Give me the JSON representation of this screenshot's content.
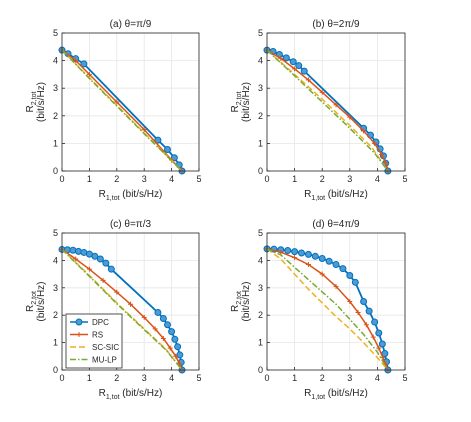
{
  "chart_data": {
    "type": "line",
    "shared": {
      "xlabel": "R",
      "xlabel_sub": "1,tot",
      "xlabel_unit": " (bit/s/Hz)",
      "ylabel": "R",
      "ylabel_sub": "2,tot",
      "ylabel_unit": "(bit/s/Hz)",
      "xlim": [
        0,
        5
      ],
      "ylim": [
        0,
        5
      ],
      "xticks": [
        "0",
        "1",
        "2",
        "3",
        "4",
        "5"
      ],
      "yticks": [
        "0",
        "1",
        "2",
        "3",
        "4",
        "5"
      ],
      "grid": true,
      "series_styles": {
        "DPC": {
          "color": "#0072bd",
          "marker": "circle"
        },
        "RS": {
          "color": "#d95319",
          "marker": "plus"
        },
        "SC-SIC": {
          "color": "#edb120",
          "dash": "dashed"
        },
        "MU-LP": {
          "color": "#77ac30",
          "dash": "dash-dot"
        }
      }
    },
    "legend": {
      "location": "bottom-left of panel (c)",
      "entries": [
        "DPC",
        "RS",
        "SC-SIC",
        "MU-LP"
      ]
    },
    "panels": [
      {
        "title": "(a) θ=π/9",
        "series": [
          {
            "name": "DPC",
            "x": [
              0,
              0.22,
              0.5,
              0.8,
              3.5,
              3.85,
              4.1,
              4.28,
              4.38
            ],
            "y": [
              4.38,
              4.25,
              4.07,
              3.88,
              1.12,
              0.78,
              0.48,
              0.22,
              0
            ]
          },
          {
            "name": "RS",
            "x": [
              0,
              0.5,
              1.0,
              2.0,
              3.0,
              4.0,
              4.38
            ],
            "y": [
              4.38,
              4.0,
              3.5,
              2.5,
              1.5,
              0.4,
              0
            ]
          },
          {
            "name": "SC-SIC",
            "x": [
              0,
              4.38
            ],
            "y": [
              4.38,
              0
            ]
          },
          {
            "name": "MU-LP",
            "x": [
              0,
              1.0,
              2.0,
              3.0,
              4.38
            ],
            "y": [
              4.38,
              3.35,
              2.35,
              1.35,
              0
            ]
          }
        ]
      },
      {
        "title": "(b) θ=2π/9",
        "series": [
          {
            "name": "DPC",
            "x": [
              0,
              0.22,
              0.45,
              0.7,
              0.95,
              1.15,
              1.35,
              3.5,
              3.75,
              3.95,
              4.1,
              4.22,
              4.3,
              4.38
            ],
            "y": [
              4.38,
              4.33,
              4.22,
              4.1,
              3.96,
              3.82,
              3.62,
              1.55,
              1.3,
              1.05,
              0.8,
              0.55,
              0.28,
              0
            ]
          },
          {
            "name": "RS",
            "x": [
              0,
              0.5,
              1.0,
              1.5,
              2.0,
              2.5,
              3.0,
              3.5,
              3.9,
              4.15,
              4.3,
              4.38
            ],
            "y": [
              4.38,
              4.08,
              3.7,
              3.3,
              2.85,
              2.4,
              1.95,
              1.45,
              1.0,
              0.6,
              0.3,
              0
            ]
          },
          {
            "name": "SC-SIC",
            "x": [
              0,
              1.0,
              2.0,
              3.0,
              3.8,
              4.38
            ],
            "y": [
              4.38,
              3.5,
              2.6,
              1.65,
              0.85,
              0
            ]
          },
          {
            "name": "MU-LP",
            "x": [
              0,
              1.0,
              2.0,
              3.0,
              3.9,
              4.38
            ],
            "y": [
              4.38,
              3.45,
              2.5,
              1.55,
              0.65,
              0
            ]
          }
        ]
      },
      {
        "title": "(c) θ=π/3",
        "series": [
          {
            "name": "DPC",
            "x": [
              0,
              0.2,
              0.4,
              0.6,
              0.8,
              1.0,
              1.2,
              1.4,
              1.6,
              1.8,
              3.5,
              3.7,
              3.85,
              4.0,
              4.12,
              4.22,
              4.3,
              4.35,
              4.38
            ],
            "y": [
              4.4,
              4.39,
              4.37,
              4.33,
              4.29,
              4.23,
              4.15,
              4.05,
              3.9,
              3.68,
              2.1,
              1.88,
              1.65,
              1.4,
              1.12,
              0.85,
              0.55,
              0.28,
              0
            ]
          },
          {
            "name": "RS",
            "x": [
              0,
              0.5,
              1.0,
              1.5,
              2.0,
              2.5,
              3.0,
              3.4,
              3.7,
              3.95,
              4.15,
              4.28,
              4.38
            ],
            "y": [
              4.4,
              4.05,
              3.68,
              3.27,
              2.84,
              2.4,
              1.92,
              1.5,
              1.15,
              0.8,
              0.5,
              0.25,
              0
            ]
          },
          {
            "name": "SC-SIC",
            "x": [
              0,
              1.0,
              2.0,
              3.0,
              3.8,
              4.38
            ],
            "y": [
              4.4,
              3.45,
              2.45,
              1.5,
              0.75,
              0
            ]
          },
          {
            "name": "MU-LP",
            "x": [
              0,
              1.0,
              2.0,
              3.0,
              3.8,
              4.38
            ],
            "y": [
              4.4,
              3.42,
              2.42,
              1.47,
              0.73,
              0
            ]
          }
        ]
      },
      {
        "title": "(d) θ=4π/9",
        "series": [
          {
            "name": "DPC",
            "x": [
              0,
              0.25,
              0.5,
              0.75,
              1.0,
              1.25,
              1.5,
              1.75,
              2.0,
              2.25,
              2.5,
              2.75,
              3.0,
              3.2,
              3.5,
              3.7,
              3.9,
              4.05,
              4.18,
              4.27,
              4.33,
              4.38
            ],
            "y": [
              4.42,
              4.41,
              4.39,
              4.36,
              4.32,
              4.27,
              4.22,
              4.15,
              4.07,
              3.97,
              3.85,
              3.7,
              3.45,
              3.2,
              2.5,
              2.15,
              1.75,
              1.35,
              0.95,
              0.6,
              0.3,
              0
            ]
          },
          {
            "name": "RS",
            "x": [
              0,
              0.5,
              1.0,
              1.5,
              2.0,
              2.5,
              3.0,
              3.3,
              3.6,
              3.85,
              4.05,
              4.2,
              4.3,
              4.38
            ],
            "y": [
              4.42,
              4.3,
              4.1,
              3.85,
              3.5,
              3.05,
              2.5,
              2.1,
              1.65,
              1.2,
              0.8,
              0.45,
              0.2,
              0
            ]
          },
          {
            "name": "SC-SIC",
            "x": [
              0,
              0.5,
              1.0,
              1.5,
              2.0,
              2.5,
              3.0,
              3.5,
              4.0,
              4.38
            ],
            "y": [
              4.42,
              4.05,
              3.5,
              2.95,
              2.45,
              1.95,
              1.5,
              1.0,
              0.45,
              0
            ]
          },
          {
            "name": "MU-LP",
            "x": [
              0,
              0.5,
              1.0,
              1.5,
              2.0,
              2.5,
              3.0,
              3.5,
              4.0,
              4.38
            ],
            "y": [
              4.42,
              4.2,
              3.75,
              3.3,
              2.85,
              2.4,
              1.85,
              1.3,
              0.65,
              0
            ]
          }
        ]
      }
    ]
  }
}
